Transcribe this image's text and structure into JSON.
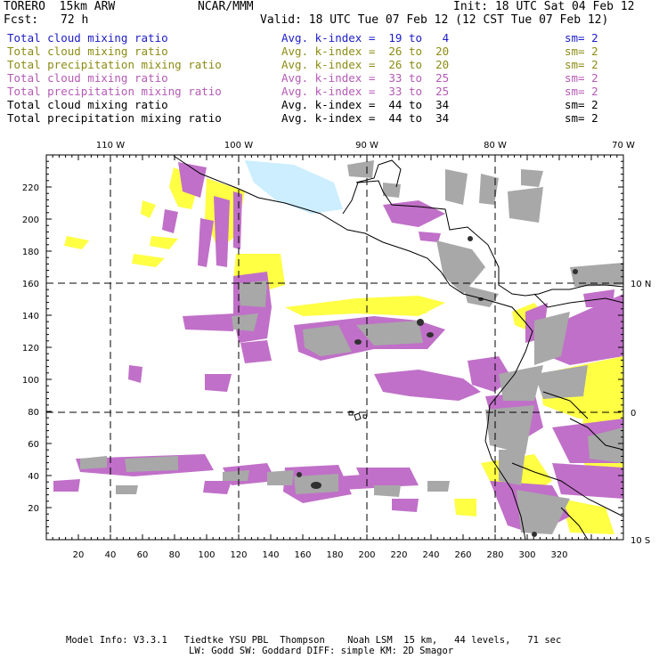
{
  "header": {
    "model": "TORERO  15km ARW",
    "center": "NCAR/MMM",
    "init": "Init: 18 UTC Sat 04 Feb 12",
    "fcst_label": "Fcst:",
    "fcst_value": "72 h",
    "valid": "Valid: 18 UTC Tue 07 Feb 12 (12 CST Tue 07 Feb 12)"
  },
  "legend": [
    {
      "field": "Total cloud mixing ratio",
      "index": "Avg. k-index =  19 to   4",
      "sm": "sm= 2",
      "color": "#1c1cc8"
    },
    {
      "field": "Total cloud mixing ratio",
      "index": "Avg. k-index =  26 to  20",
      "sm": "sm= 2",
      "color": "#8c8c14"
    },
    {
      "field": "Total precipitation mixing ratio",
      "index": "Avg. k-index =  26 to  20",
      "sm": "sm= 2",
      "color": "#8c8c14"
    },
    {
      "field": "Total cloud mixing ratio",
      "index": "Avg. k-index =  33 to  25",
      "sm": "sm= 2",
      "color": "#b45ab4"
    },
    {
      "field": "Total precipitation mixing ratio",
      "index": "Avg. k-index =  33 to  25",
      "sm": "sm= 2",
      "color": "#b45ab4"
    },
    {
      "field": "Total cloud mixing ratio",
      "index": "Avg. k-index =  44 to  34",
      "sm": "sm= 2",
      "color": "#000000"
    },
    {
      "field": "Total precipitation mixing ratio",
      "index": "Avg. k-index =  44 to  34",
      "sm": "sm= 2",
      "color": "#000000"
    }
  ],
  "map": {
    "top_labels": [
      "110 W",
      "100 W",
      "90 W",
      "80 W",
      "70 W"
    ],
    "right_labels": [
      "10 N",
      "0",
      "10 S"
    ],
    "x_ticks": [
      "20",
      "40",
      "60",
      "80",
      "100",
      "120",
      "140",
      "160",
      "180",
      "200",
      "220",
      "240",
      "260",
      "280",
      "300",
      "320"
    ],
    "y_ticks": [
      "20",
      "40",
      "60",
      "80",
      "100",
      "120",
      "140",
      "160",
      "180",
      "200",
      "220"
    ],
    "colors": {
      "light_blue": "#cceeff",
      "yellow": "#ffff44",
      "purple": "#c070c8",
      "gray": "#a8a8a8",
      "dark": "#303030"
    }
  },
  "footer": {
    "line1": "Model Info: V3.3.1   Tiedtke YSU PBL  Thompson    Noah LSM  15 km,   44 levels,   71 sec",
    "line2": "LW: Godd SW: Goddard DIFF: simple KM: 2D Smagor"
  }
}
